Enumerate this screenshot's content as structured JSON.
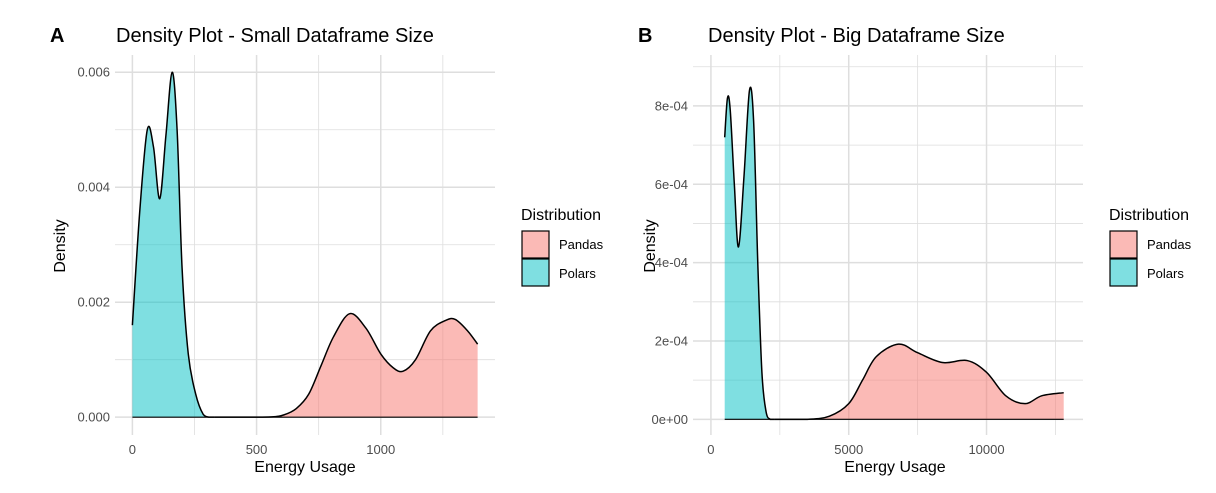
{
  "colors": {
    "Pandas": "#F8766D",
    "Polars": "#00BFC4",
    "fill_alpha": 0.5,
    "grid": "#dedede"
  },
  "chart_data": [
    {
      "panel_tag": "A",
      "type": "area",
      "title": "Density Plot - Small Dataframe Size",
      "xlabel": "Energy Usage",
      "ylabel": "Density",
      "xlim": [
        -70,
        1460
      ],
      "ylim": [
        -0.00031,
        0.0063
      ],
      "xticks": [
        0,
        500,
        1000
      ],
      "xtick_labels": [
        "0",
        "500",
        "1000"
      ],
      "yticks": [
        0,
        0.002,
        0.004,
        0.006
      ],
      "ytick_labels": [
        "0.000",
        "0.002",
        "0.004",
        "0.006"
      ],
      "grid": true,
      "legend": {
        "title": "Distribution",
        "position": "right",
        "entries": [
          "Pandas",
          "Polars"
        ]
      },
      "series": [
        {
          "name": "Polars",
          "x": [
            0,
            30,
            60,
            85,
            110,
            135,
            160,
            180,
            200,
            225,
            255,
            285,
            310,
            330
          ],
          "y": [
            0.0016,
            0.0036,
            0.005,
            0.0047,
            0.0038,
            0.0049,
            0.006,
            0.005,
            0.0026,
            0.0011,
            0.0004,
            5e-05,
            0.0,
            0.0
          ]
        },
        {
          "name": "Pandas",
          "x": [
            330,
            450,
            560,
            610,
            660,
            710,
            760,
            810,
            875,
            940,
            1000,
            1050,
            1090,
            1140,
            1200,
            1260,
            1300,
            1350,
            1390
          ],
          "y": [
            0.0,
            0.0,
            5e-06,
            4e-05,
            0.00015,
            0.0004,
            0.0009,
            0.0014,
            0.0018,
            0.00155,
            0.0011,
            0.00086,
            0.0008,
            0.001,
            0.0015,
            0.00168,
            0.0017,
            0.0015,
            0.00127
          ]
        }
      ]
    },
    {
      "panel_tag": "B",
      "type": "area",
      "title": "Density Plot - Big Dataframe Size",
      "xlabel": "Energy Usage",
      "ylabel": "Density",
      "xlim": [
        -650,
        13500
      ],
      "ylim": [
        -4e-05,
        0.00093
      ],
      "xticks": [
        0,
        5000,
        10000
      ],
      "xtick_labels": [
        "0",
        "5000",
        "10000"
      ],
      "yticks": [
        0,
        0.0002,
        0.0004,
        0.0006,
        0.0008
      ],
      "ytick_labels": [
        "0e+00",
        "2e-04",
        "4e-04",
        "6e-04",
        "8e-04"
      ],
      "grid": true,
      "legend": {
        "title": "Distribution",
        "position": "right",
        "entries": [
          "Pandas",
          "Polars"
        ]
      },
      "series": [
        {
          "name": "Polars",
          "x": [
            500,
            600,
            700,
            850,
            1000,
            1200,
            1400,
            1550,
            1700,
            1850,
            2000,
            2150,
            2300
          ],
          "y": [
            0.00072,
            0.00082,
            0.00079,
            0.0006,
            0.00044,
            0.00062,
            0.00084,
            0.00076,
            0.0004,
            0.00012,
            2e-05,
            0.0,
            0.0
          ]
        },
        {
          "name": "Pandas",
          "x": [
            2300,
            3500,
            4300,
            5000,
            5500,
            6000,
            6800,
            7500,
            8400,
            9300,
            10000,
            10700,
            11400,
            12000,
            12800
          ],
          "y": [
            0.0,
            0.0,
            8e-06,
            4e-05,
            0.0001,
            0.00016,
            0.000192,
            0.00017,
            0.000145,
            0.00015,
            0.00012,
            6e-05,
            4e-05,
            6e-05,
            6.8e-05
          ]
        }
      ]
    }
  ]
}
